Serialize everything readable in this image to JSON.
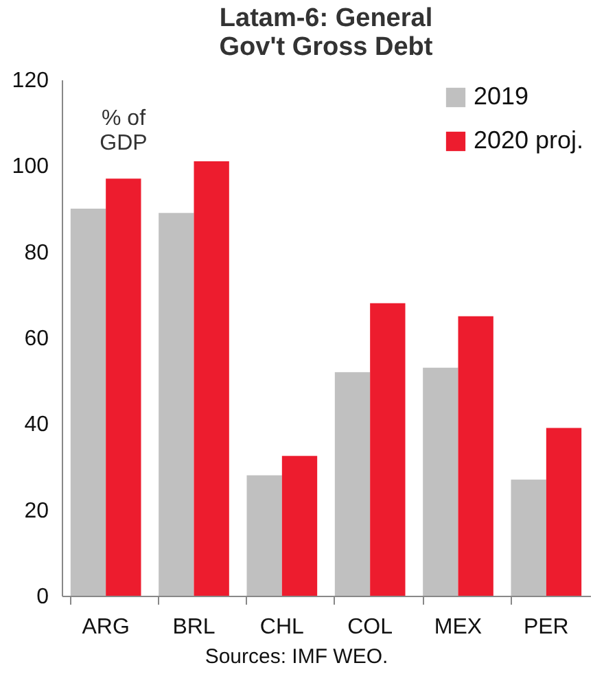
{
  "chart_data": {
    "type": "bar",
    "title": "Latam-6:  General\nGov't  Gross Debt",
    "categories": [
      "ARG",
      "BRL",
      "CHL",
      "COL",
      "MEX",
      "PER"
    ],
    "series": [
      {
        "name": "2019",
        "color": "#c0c0c0",
        "values": [
          90,
          89,
          28,
          52,
          53,
          27
        ]
      },
      {
        "name": "2020 proj.",
        "color": "#ed1c2e",
        "values": [
          97,
          101,
          32.5,
          68,
          65,
          39
        ]
      }
    ],
    "ylim": [
      0,
      120
    ],
    "yticks": [
      0,
      20,
      40,
      60,
      80,
      100,
      120
    ],
    "grid": false,
    "legend": "top right",
    "annotations": [
      "% of\nGDP",
      "Sources: IMF WEO."
    ]
  }
}
